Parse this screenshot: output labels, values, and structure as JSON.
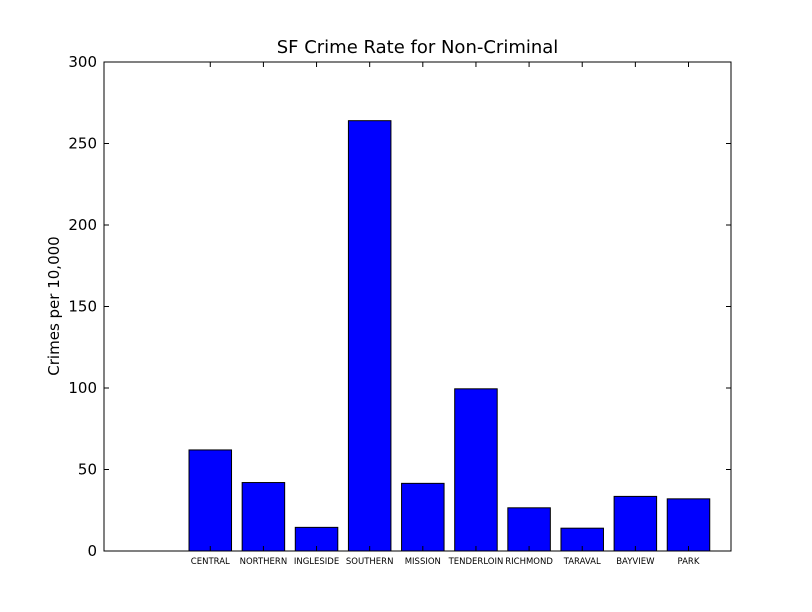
{
  "chart_data": {
    "type": "bar",
    "title": "SF Crime Rate for Non-Criminal",
    "xlabel": "",
    "ylabel": "Crimes per 10,000",
    "categories": [
      "CENTRAL",
      "NORTHERN",
      "INGLESIDE",
      "SOUTHERN",
      "MISSION",
      "TENDERLOIN",
      "RICHMOND",
      "TARAVAL",
      "BAYVIEW",
      "PARK"
    ],
    "values": [
      62,
      42,
      14.5,
      264,
      41.5,
      99.5,
      26.5,
      14,
      33.5,
      32
    ],
    "ylim": [
      0,
      300
    ],
    "yticks": [
      0,
      50,
      100,
      150,
      200,
      250,
      300
    ],
    "ytick_labels": [
      "0",
      "50",
      "100",
      "150",
      "200",
      "250",
      "300"
    ],
    "xlim": [
      -1.6,
      10.2
    ],
    "grid": false,
    "bar_color": "#0000ff",
    "edge_color": "#000000"
  }
}
